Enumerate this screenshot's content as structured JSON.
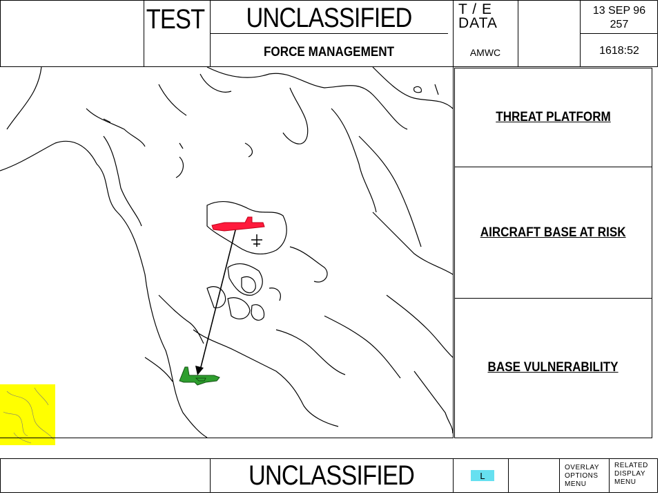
{
  "header": {
    "test_label": "TEST",
    "classification": "UNCLASSIFIED",
    "te_line1": "T / E",
    "te_line2": "DATA",
    "date": "13 SEP 96",
    "day_number": "257",
    "subtitle": "FORCE MANAGEMENT",
    "source": "AMWC",
    "time": "1618:52"
  },
  "panels": [
    {
      "label": "THREAT PLATFORM"
    },
    {
      "label": "AIRCRAFT BASE AT RISK"
    },
    {
      "label": "BASE VULNERABILITY"
    }
  ],
  "map": {
    "threat_color": "#ff1a3c",
    "friendly_color": "#2e9e2e",
    "inset_color": "#ffff00",
    "icons": [
      "threat-aircraft-icon",
      "friendly-aircraft-icon",
      "track-arrow-icon"
    ]
  },
  "footer": {
    "classification": "UNCLASSIFIED",
    "mode_indicator": "L",
    "mode_color": "#66e0f0",
    "overlay_menu": [
      "OVERLAY",
      "OPTIONS",
      "MENU"
    ],
    "related_menu": [
      "RELATED",
      "DISPLAY",
      "MENU"
    ]
  }
}
